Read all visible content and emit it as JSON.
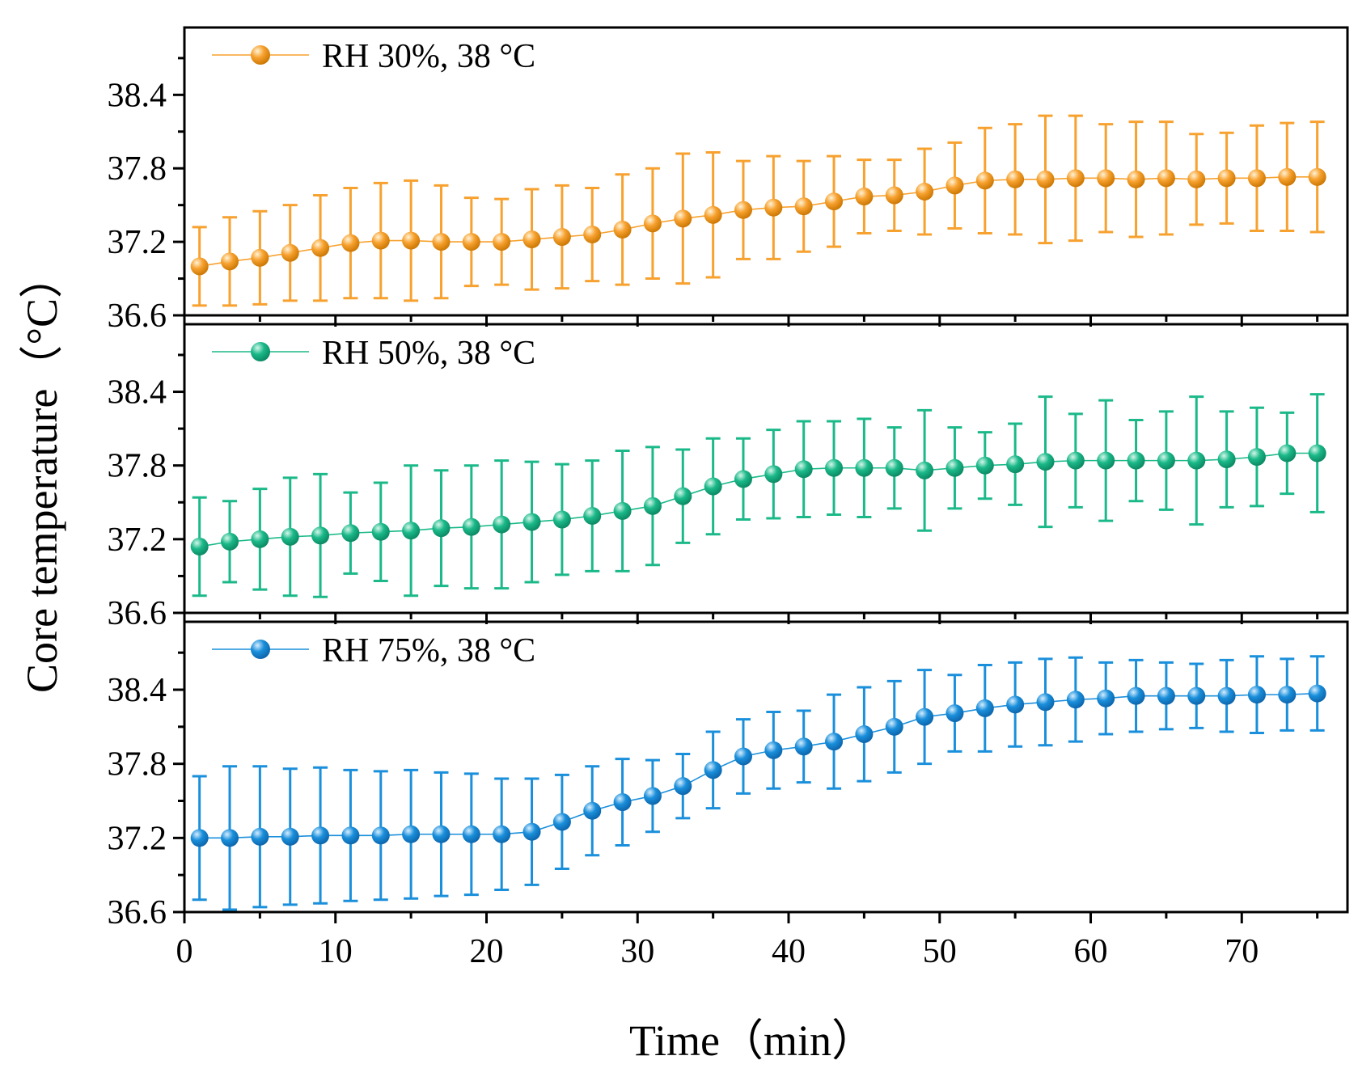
{
  "chart_data": {
    "type": "line",
    "xlabel": "Time（min）",
    "ylabel": "Core temperature（°C）",
    "xlim": [
      0,
      77
    ],
    "ylim": [
      36.6,
      38.95
    ],
    "x_ticks": [
      0,
      10,
      20,
      30,
      40,
      50,
      60,
      70
    ],
    "y_ticks": [
      36.6,
      37.2,
      37.8,
      38.4
    ],
    "x_tick_labels": [
      "0",
      "10",
      "20",
      "30",
      "40",
      "50",
      "60",
      "70"
    ],
    "y_tick_labels": [
      "36.6",
      "37.2",
      "37.8",
      "38.4"
    ],
    "x": [
      1,
      3,
      5,
      7,
      9,
      11,
      13,
      15,
      17,
      19,
      21,
      23,
      25,
      27,
      29,
      31,
      33,
      35,
      37,
      39,
      41,
      43,
      45,
      47,
      49,
      51,
      53,
      55,
      57,
      59,
      61,
      63,
      65,
      67,
      69,
      71,
      73,
      75
    ],
    "series": [
      {
        "name": "RH 30%, 38 °C",
        "color": "#F7A12F",
        "values": [
          37.0,
          37.04,
          37.07,
          37.11,
          37.15,
          37.19,
          37.21,
          37.21,
          37.2,
          37.2,
          37.2,
          37.22,
          37.24,
          37.26,
          37.3,
          37.35,
          37.39,
          37.42,
          37.46,
          37.48,
          37.49,
          37.53,
          37.57,
          37.58,
          37.61,
          37.66,
          37.7,
          37.71,
          37.71,
          37.72,
          37.72,
          37.71,
          37.72,
          37.71,
          37.72,
          37.72,
          37.73,
          37.73
        ],
        "errors": [
          0.32,
          0.36,
          0.38,
          0.39,
          0.43,
          0.45,
          0.47,
          0.49,
          0.46,
          0.36,
          0.35,
          0.41,
          0.42,
          0.38,
          0.45,
          0.45,
          0.53,
          0.51,
          0.4,
          0.42,
          0.37,
          0.37,
          0.3,
          0.29,
          0.35,
          0.35,
          0.43,
          0.45,
          0.52,
          0.51,
          0.44,
          0.47,
          0.46,
          0.37,
          0.37,
          0.43,
          0.44,
          0.45
        ]
      },
      {
        "name": "RH 50%, 38 °C",
        "color": "#1BB989",
        "values": [
          37.14,
          37.18,
          37.2,
          37.22,
          37.23,
          37.25,
          37.26,
          37.27,
          37.29,
          37.3,
          37.32,
          37.34,
          37.36,
          37.39,
          37.43,
          37.47,
          37.55,
          37.63,
          37.69,
          37.73,
          37.77,
          37.78,
          37.78,
          37.78,
          37.76,
          37.78,
          37.8,
          37.81,
          37.83,
          37.84,
          37.84,
          37.84,
          37.84,
          37.84,
          37.85,
          37.87,
          37.9,
          37.9
        ],
        "errors": [
          0.4,
          0.33,
          0.41,
          0.48,
          0.5,
          0.33,
          0.4,
          0.53,
          0.47,
          0.5,
          0.52,
          0.49,
          0.45,
          0.45,
          0.49,
          0.48,
          0.38,
          0.39,
          0.33,
          0.36,
          0.39,
          0.38,
          0.4,
          0.33,
          0.49,
          0.33,
          0.27,
          0.33,
          0.53,
          0.38,
          0.49,
          0.33,
          0.4,
          0.52,
          0.39,
          0.4,
          0.33,
          0.48
        ]
      },
      {
        "name": "RH 75%, 38 °C",
        "color": "#1A8FDB",
        "values": [
          37.2,
          37.2,
          37.21,
          37.21,
          37.22,
          37.22,
          37.22,
          37.23,
          37.23,
          37.23,
          37.23,
          37.25,
          37.33,
          37.42,
          37.49,
          37.54,
          37.62,
          37.75,
          37.86,
          37.91,
          37.94,
          37.98,
          38.04,
          38.1,
          38.18,
          38.21,
          38.25,
          38.28,
          38.3,
          38.32,
          38.33,
          38.35,
          38.35,
          38.35,
          38.35,
          38.36,
          38.36,
          38.37
        ],
        "errors": [
          0.5,
          0.58,
          0.57,
          0.55,
          0.55,
          0.53,
          0.52,
          0.52,
          0.5,
          0.49,
          0.45,
          0.43,
          0.38,
          0.36,
          0.35,
          0.29,
          0.26,
          0.31,
          0.3,
          0.31,
          0.29,
          0.38,
          0.38,
          0.37,
          0.38,
          0.31,
          0.35,
          0.34,
          0.35,
          0.34,
          0.29,
          0.29,
          0.27,
          0.26,
          0.29,
          0.31,
          0.29,
          0.3
        ]
      }
    ]
  }
}
